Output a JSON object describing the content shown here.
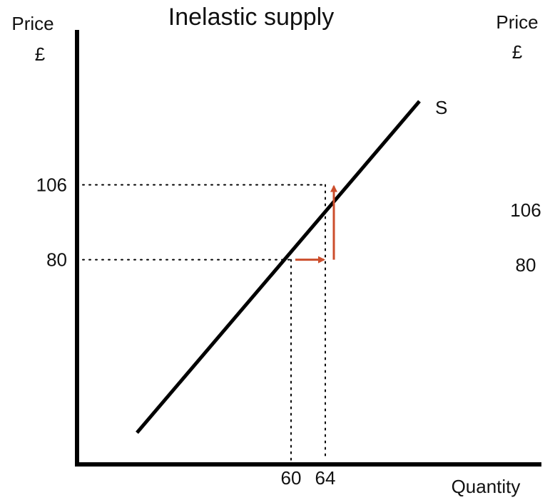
{
  "chart_data": {
    "type": "line",
    "title": "Inelastic supply",
    "ylabel": "Price",
    "ylabel_unit": "£",
    "right_ylabel": "Price",
    "right_ylabel_unit": "£",
    "xlabel": "Quantity",
    "series": [
      {
        "name": "S",
        "points": [
          [
            42,
            20
          ],
          [
            75,
            135
          ]
        ]
      }
    ],
    "reference_points": [
      {
        "x": 60,
        "y": 80
      },
      {
        "x": 64,
        "y": 106
      }
    ],
    "x_ticks": [
      60,
      64
    ],
    "y_ticks": [
      80,
      106
    ],
    "right_y_ticks": [
      106,
      80
    ],
    "arrows": [
      {
        "direction": "right",
        "from": [
          60,
          80
        ],
        "to": [
          64,
          80
        ]
      },
      {
        "direction": "up",
        "from": [
          65,
          80
        ],
        "to": [
          65,
          106
        ]
      }
    ],
    "arrow_color": "#cc4e2c",
    "line_color": "#000000",
    "xlim": [
      35,
      89
    ],
    "ylim": [
      9,
      159
    ],
    "grid": false
  }
}
